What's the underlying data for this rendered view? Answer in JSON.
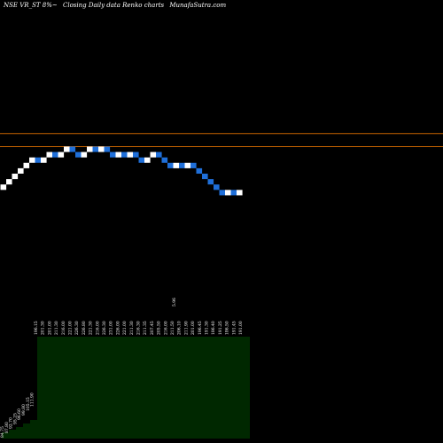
{
  "header": {
    "ticker": "NSE VR_ST 8%~",
    "description": "Closing Daily data Renko charts",
    "site": "MunafaSutra.com"
  },
  "chart_data": {
    "type": "renko",
    "colors": {
      "up": "#ffffff",
      "down": "#1f6fd9",
      "line": "#c86400",
      "volume": "#002800"
    },
    "brick_size": 5,
    "bricks": [
      {
        "dir": "up",
        "close": 196
      },
      {
        "dir": "up",
        "close": 201
      },
      {
        "dir": "up",
        "close": 206
      },
      {
        "dir": "up",
        "close": 211
      },
      {
        "dir": "up",
        "close": 216
      },
      {
        "dir": "up",
        "close": 221
      },
      {
        "dir": "down",
        "close": 216
      },
      {
        "dir": "up",
        "close": 221
      },
      {
        "dir": "up",
        "close": 226
      },
      {
        "dir": "down",
        "close": 221
      },
      {
        "dir": "up",
        "close": 226
      },
      {
        "dir": "up",
        "close": 231
      },
      {
        "dir": "down",
        "close": 226
      },
      {
        "dir": "down",
        "close": 221
      },
      {
        "dir": "up",
        "close": 226
      },
      {
        "dir": "up",
        "close": 231
      },
      {
        "dir": "down",
        "close": 226
      },
      {
        "dir": "up",
        "close": 231
      },
      {
        "dir": "down",
        "close": 226
      },
      {
        "dir": "down",
        "close": 221
      },
      {
        "dir": "up",
        "close": 226
      },
      {
        "dir": "down",
        "close": 221
      },
      {
        "dir": "up",
        "close": 226
      },
      {
        "dir": "down",
        "close": 221
      },
      {
        "dir": "down",
        "close": 216
      },
      {
        "dir": "up",
        "close": 221
      },
      {
        "dir": "up",
        "close": 226
      },
      {
        "dir": "down",
        "close": 221
      },
      {
        "dir": "down",
        "close": 216
      },
      {
        "dir": "down",
        "close": 211
      },
      {
        "dir": "up",
        "close": 216
      },
      {
        "dir": "down",
        "close": 211
      },
      {
        "dir": "up",
        "close": 216
      },
      {
        "dir": "down",
        "close": 211
      },
      {
        "dir": "down",
        "close": 206
      },
      {
        "dir": "down",
        "close": 201
      },
      {
        "dir": "down",
        "close": 196
      },
      {
        "dir": "down",
        "close": 191
      },
      {
        "dir": "down",
        "close": 186
      },
      {
        "dir": "up",
        "close": 191
      },
      {
        "dir": "down",
        "close": 186
      },
      {
        "dir": "up",
        "close": 191
      }
    ],
    "ref_lines": [
      243,
      231
    ],
    "ylim": [
      170,
      260
    ],
    "x_labels": [
      "84.75",
      "87.80",
      "92.70",
      "95.25",
      "96.60",
      "99.80",
      "105.15",
      "111.90",
      "196.15",
      "201.30",
      "201.00",
      "211.30",
      "216.00",
      "221.00",
      "226.30",
      "226.80",
      "221.30",
      "216.00",
      "226.30",
      "231.00",
      "226.00",
      "221.00",
      "211.30",
      "216.30",
      "211.35",
      "207.45",
      "205.50",
      "216.00",
      "211.50",
      "206.10",
      "211.90",
      "201.00",
      "196.45",
      "191.30",
      "186.40",
      "191.25",
      "186.50",
      "191.45",
      "191.00"
    ],
    "volume_label": "5.96"
  }
}
